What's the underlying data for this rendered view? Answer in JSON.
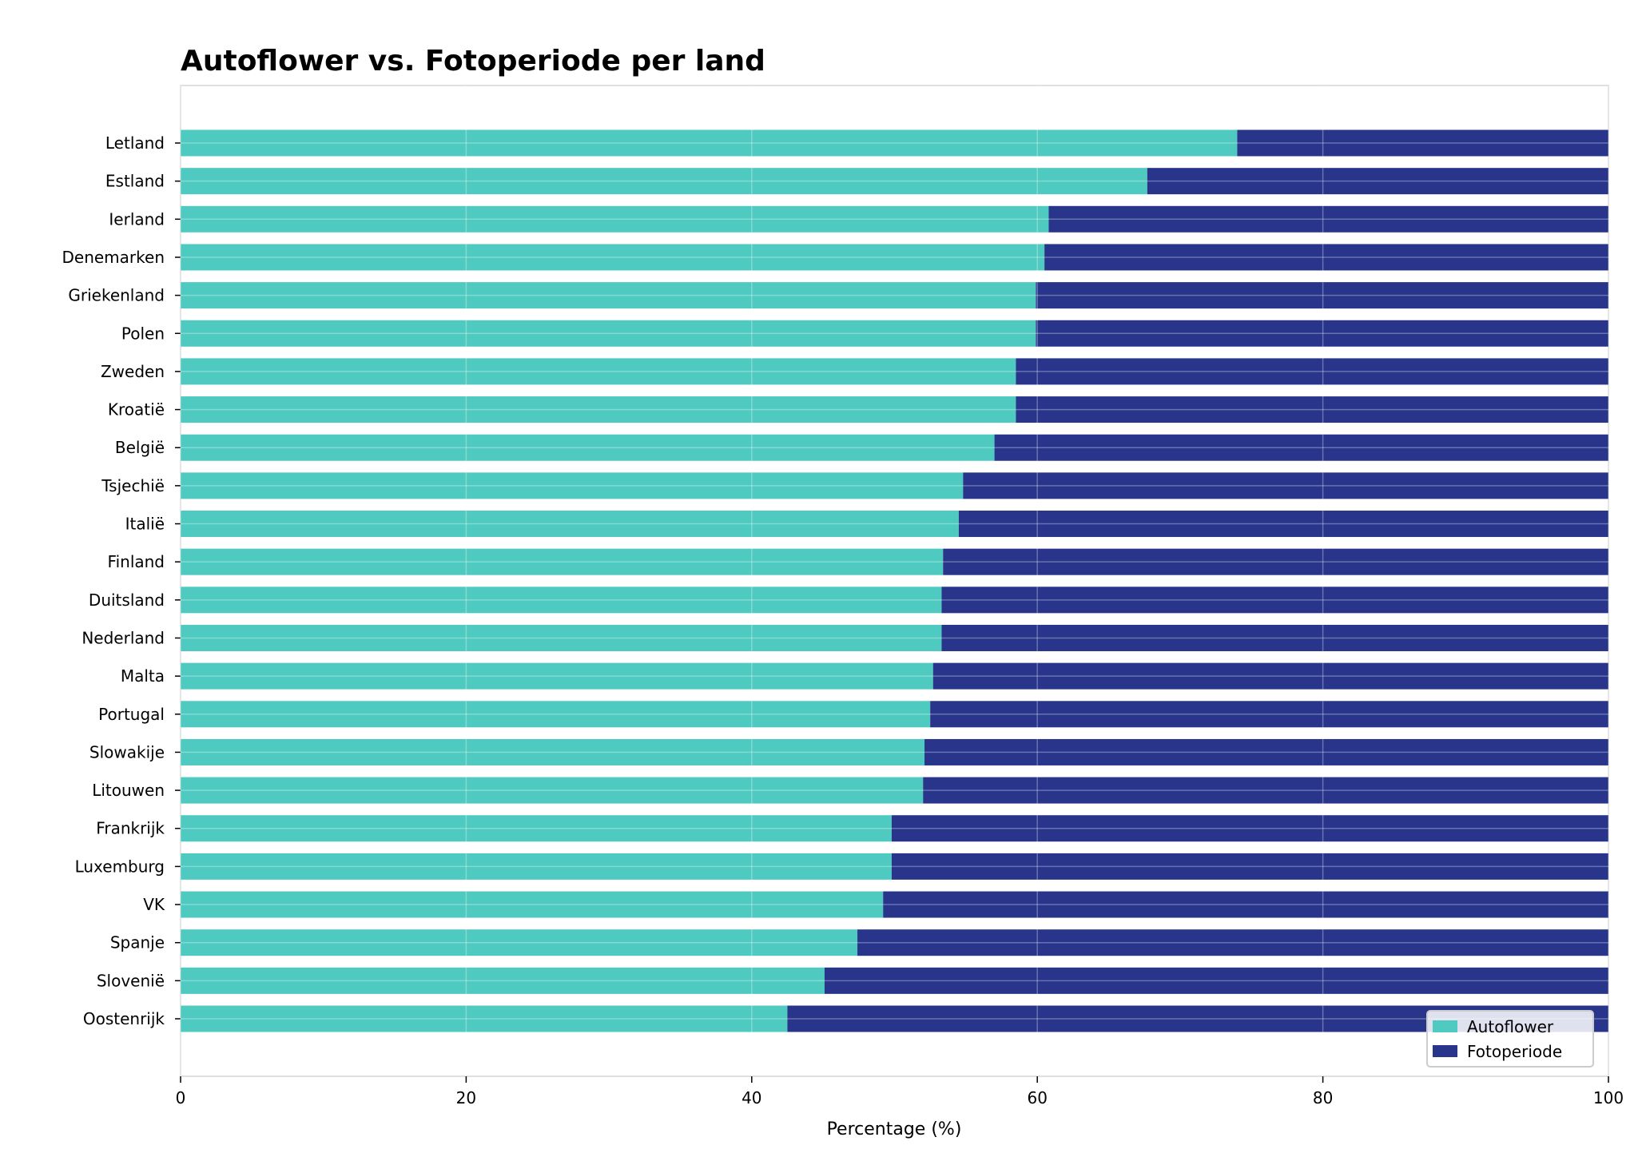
{
  "chart_data": {
    "type": "bar",
    "orientation": "horizontal",
    "stacked": true,
    "title": "Autoflower vs. Fotoperiode per land",
    "xlabel": "Percentage (%)",
    "ylabel": "",
    "xlim": [
      0,
      100
    ],
    "xticks": [
      0,
      20,
      40,
      60,
      80,
      100
    ],
    "grid": true,
    "legend_position": "lower-right",
    "categories": [
      "Letland",
      "Estland",
      "Ierland",
      "Denemarken",
      "Griekenland",
      "Polen",
      "Zweden",
      "Kroatië",
      "België",
      "Tsjechië",
      "Italië",
      "Finland",
      "Duitsland",
      "Nederland",
      "Malta",
      "Portugal",
      "Slowakije",
      "Litouwen",
      "Frankrijk",
      "Luxemburg",
      "VK",
      "Spanje",
      "Slovenië",
      "Oostenrijk"
    ],
    "series": [
      {
        "name": "Autoflower",
        "color": "#4ecac0",
        "values": [
          74.0,
          67.7,
          60.8,
          60.5,
          59.9,
          59.9,
          58.5,
          58.5,
          57.0,
          54.8,
          54.5,
          53.4,
          53.3,
          53.3,
          52.7,
          52.5,
          52.1,
          52.0,
          49.8,
          49.8,
          49.2,
          47.4,
          45.1,
          42.5
        ]
      },
      {
        "name": "Fotoperiode",
        "color": "#28358b",
        "values": [
          26.0,
          32.3,
          39.2,
          39.5,
          40.1,
          40.1,
          41.5,
          41.5,
          43.0,
          45.2,
          45.5,
          46.6,
          46.7,
          46.7,
          47.3,
          47.5,
          47.9,
          48.0,
          50.2,
          50.2,
          50.8,
          52.6,
          54.9,
          57.5
        ]
      }
    ]
  }
}
